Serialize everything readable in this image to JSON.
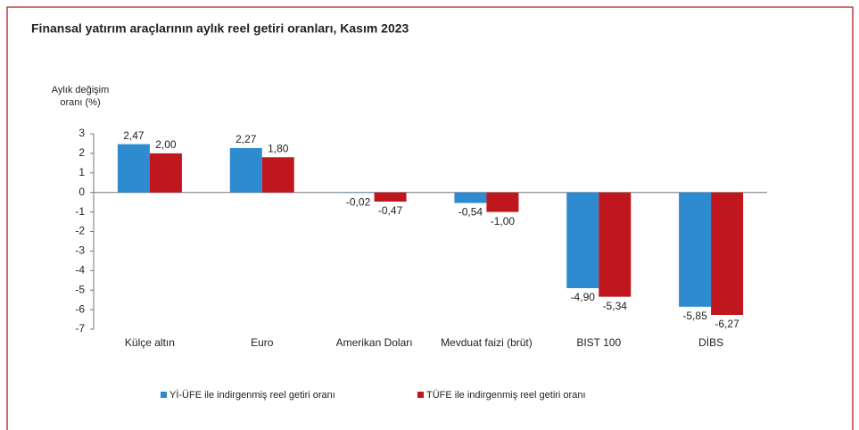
{
  "chart_data": {
    "type": "bar",
    "title": "Finansal yatırım araçlarının aylık reel getiri oranları, Kasım 2023",
    "y_label": [
      "Aylık değişim",
      "oranı (%)"
    ],
    "categories": [
      "Külçe altın",
      "Euro",
      "Amerikan Doları",
      "Mevduat faizi (brüt)",
      "BIST 100",
      "DİBS"
    ],
    "series": [
      {
        "name": "Yİ-ÜFE ile indirgenmiş reel getiri oranı",
        "color": "#2e8bd0",
        "values": [
          2.47,
          2.27,
          -0.02,
          -0.54,
          -4.9,
          -5.85
        ],
        "value_labels": [
          "2,47",
          "2,27",
          "-0,02",
          "-0,54",
          "-4,90",
          "-5,85"
        ]
      },
      {
        "name": "TÜFE ile indirgenmiş reel getiri oranı",
        "color": "#c0161e",
        "values": [
          2.0,
          1.8,
          -0.47,
          -1.0,
          -5.34,
          -6.27
        ],
        "value_labels": [
          "2,00",
          "1,80",
          "-0,47",
          "-1,00",
          "-5,34",
          "-6,27"
        ]
      }
    ],
    "ylim": [
      -7,
      3
    ],
    "yticks": [
      3,
      2,
      1,
      0,
      -1,
      -2,
      -3,
      -4,
      -5,
      -6,
      -7
    ],
    "grid": false
  }
}
